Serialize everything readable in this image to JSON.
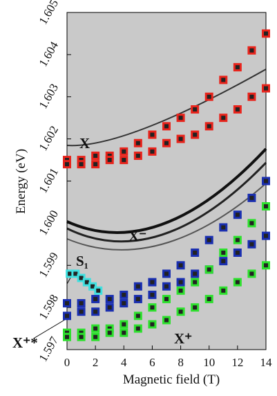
{
  "chart_data": {
    "type": "scatter",
    "x_label": "Magnetic field (T)",
    "y_label": "Energy (eV)",
    "xlim": [
      0,
      14
    ],
    "ylim": [
      1.597,
      1.605
    ],
    "xticks": [
      0,
      2,
      4,
      6,
      8,
      10,
      12,
      14
    ],
    "yticks": [
      1.597,
      1.598,
      1.599,
      {
        "value": 1.6,
        "label": "1.600"
      },
      1.601,
      1.602,
      1.603,
      1.604,
      1.605
    ],
    "series": [
      {
        "color": "#e8241c",
        "x": [
          0,
          1,
          2,
          3,
          4,
          5,
          6,
          7,
          8,
          9,
          10,
          11,
          12,
          13,
          14
        ],
        "values": [
          1.6015,
          1.6015,
          1.6016,
          1.6016,
          1.6017,
          1.6019,
          1.6021,
          1.6023,
          1.6025,
          1.6027,
          1.603,
          1.6034,
          1.6037,
          1.6041,
          1.6045
        ]
      },
      {
        "color": "#e8241c",
        "x": [
          0,
          1,
          2,
          3,
          4,
          5,
          6,
          7,
          8,
          9,
          10,
          11,
          12,
          13,
          14
        ],
        "values": [
          1.6014,
          1.6014,
          1.6014,
          1.6015,
          1.6015,
          1.6016,
          1.6017,
          1.6019,
          1.602,
          1.6021,
          1.6023,
          1.6025,
          1.6027,
          1.603,
          1.6032
        ]
      },
      {
        "color": "#1a2fb0",
        "x": [
          0,
          1,
          2,
          3,
          4,
          5,
          6,
          7,
          8,
          9,
          10,
          11,
          12,
          13,
          14
        ],
        "values": [
          1.5981,
          1.5981,
          1.5982,
          1.5982,
          1.5983,
          1.5985,
          1.5986,
          1.5988,
          1.599,
          1.5993,
          1.5996,
          1.5999,
          1.6002,
          1.6006,
          1.601
        ]
      },
      {
        "color": "#1a2fb0",
        "x": [
          0,
          1,
          2,
          3,
          4,
          5,
          6,
          7,
          8,
          9,
          10,
          11,
          12,
          13,
          14
        ],
        "values": [
          1.5978,
          1.5979,
          1.5979,
          1.598,
          1.5981,
          1.5982,
          1.5983,
          1.5985,
          1.5986,
          1.5988,
          1.5989,
          1.5991,
          1.5993,
          1.5995,
          1.5997
        ]
      },
      {
        "color": "#2ee02e",
        "x": [
          0,
          1,
          2,
          3,
          4,
          5,
          6,
          7,
          8,
          9,
          10,
          11,
          12,
          13,
          14
        ],
        "values": [
          1.5974,
          1.5974,
          1.5975,
          1.5975,
          1.5976,
          1.5978,
          1.598,
          1.5982,
          1.5984,
          1.5986,
          1.5989,
          1.5993,
          1.5996,
          1.6,
          1.6004
        ]
      },
      {
        "color": "#2ee02e",
        "x": [
          0,
          1,
          2,
          3,
          4,
          5,
          6,
          7,
          8,
          9,
          10,
          11,
          12,
          13,
          14
        ],
        "values": [
          1.5973,
          1.5973,
          1.5973,
          1.5974,
          1.5974,
          1.5975,
          1.5976,
          1.5977,
          1.5979,
          1.598,
          1.5982,
          1.5984,
          1.5986,
          1.5988,
          1.599
        ]
      },
      {
        "color": "#3fe0e0",
        "x": [
          0.2,
          0.6,
          1.0,
          1.4,
          1.8,
          2.2
        ],
        "values": [
          1.5988,
          1.5988,
          1.5987,
          1.5986,
          1.5985,
          1.5984
        ]
      }
    ],
    "annotations": [
      "X",
      "X⁻",
      "S₁",
      "X⁺*",
      "X⁺"
    ]
  }
}
